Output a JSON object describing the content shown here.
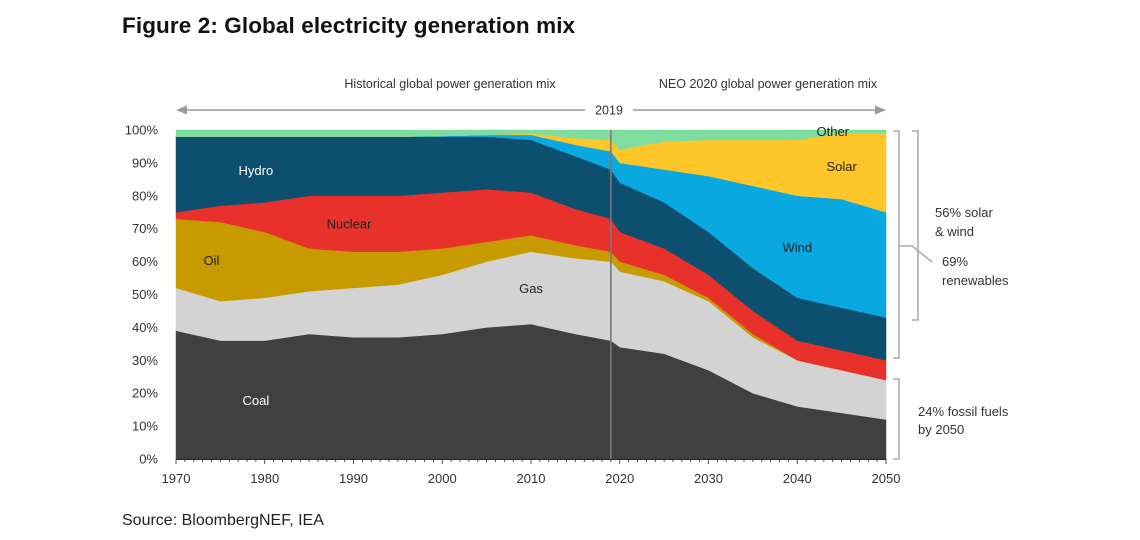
{
  "figure": {
    "title": "Figure 2: Global electricity generation mix",
    "source": "Source: BloombergNEF, IEA"
  },
  "chart_data": {
    "type": "area",
    "stacked": true,
    "percent": true,
    "title": "Figure 2: Global electricity generation mix",
    "xlabel": "",
    "ylabel": "",
    "xlim": [
      1970,
      2050
    ],
    "ylim": [
      0,
      100
    ],
    "x_ticks": [
      1970,
      1980,
      1990,
      2000,
      2010,
      2020,
      2030,
      2040,
      2050
    ],
    "x_tick_labels": [
      "1970",
      "1980",
      "1990",
      "2000",
      "2010",
      "2020",
      "2030",
      "2040",
      "2050"
    ],
    "y_ticks": [
      0,
      10,
      20,
      30,
      40,
      50,
      60,
      70,
      80,
      90,
      100
    ],
    "y_tick_labels": [
      "0%",
      "10%",
      "20%",
      "30%",
      "40%",
      "50%",
      "60%",
      "70%",
      "80%",
      "90%",
      "100%"
    ],
    "x": [
      1970,
      1975,
      1980,
      1985,
      1990,
      1995,
      2000,
      2005,
      2010,
      2015,
      2019,
      2020,
      2025,
      2030,
      2035,
      2040,
      2045,
      2050
    ],
    "series": [
      {
        "name": "Coal",
        "color": "#404040",
        "values": [
          39,
          36,
          36,
          38,
          37,
          37,
          38,
          40,
          41,
          38,
          36,
          34,
          32,
          27,
          20,
          16,
          14,
          12
        ]
      },
      {
        "name": "Gas",
        "color": "#d3d3d3",
        "values": [
          13,
          12,
          13,
          13,
          15,
          16,
          18,
          20,
          22,
          23,
          24,
          23,
          22,
          21,
          17,
          14,
          13,
          12
        ]
      },
      {
        "name": "Oil",
        "color": "#c79a00",
        "values": [
          21,
          24,
          20,
          13,
          11,
          10,
          8,
          6,
          5,
          4,
          3,
          3,
          2,
          1,
          1,
          0,
          0,
          0
        ]
      },
      {
        "name": "Nuclear",
        "color": "#e8312a",
        "values": [
          2,
          5,
          9,
          16,
          17,
          17,
          17,
          16,
          13,
          11,
          10,
          9,
          8,
          7,
          7,
          6,
          6,
          6
        ]
      },
      {
        "name": "Hydro",
        "color": "#0d4f6e",
        "values": [
          23,
          21,
          20,
          18,
          18,
          18,
          17,
          16,
          16,
          16,
          15,
          15,
          14,
          13,
          13,
          13,
          13,
          13
        ]
      },
      {
        "name": "Wind",
        "color": "#0aa8e0",
        "values": [
          0,
          0,
          0,
          0,
          0,
          0,
          0.2,
          0.5,
          1.5,
          3.5,
          5.5,
          6,
          10,
          17,
          25,
          31,
          33,
          32
        ]
      },
      {
        "name": "Solar",
        "color": "#ffc629",
        "values": [
          0,
          0,
          0,
          0,
          0,
          0,
          0,
          0,
          0.5,
          2,
          3.5,
          4,
          8.5,
          11,
          14,
          17,
          20,
          24
        ]
      },
      {
        "name": "Other",
        "color": "#7fde9f",
        "values": [
          2,
          2,
          2,
          2,
          2,
          2,
          1.8,
          1.5,
          1,
          2.5,
          3,
          6,
          3.5,
          3,
          3,
          3,
          1,
          1
        ]
      }
    ],
    "series_labels": [
      "Coal",
      "Gas",
      "Oil",
      "Nuclear",
      "Hydro",
      "Wind",
      "Solar",
      "Other"
    ],
    "divider_year": 2019,
    "divider_label": "2019",
    "period_labels": {
      "historical": "Historical global power generation mix",
      "forecast": "NEO 2020  global power generation mix"
    },
    "annotations": {
      "solar_wind": [
        "56% solar",
        "& wind"
      ],
      "renewables": [
        "69%",
        "renewables"
      ],
      "fossil": [
        "24% fossil fuels",
        "by 2050"
      ]
    },
    "grid": false,
    "legend": "inline labels"
  }
}
